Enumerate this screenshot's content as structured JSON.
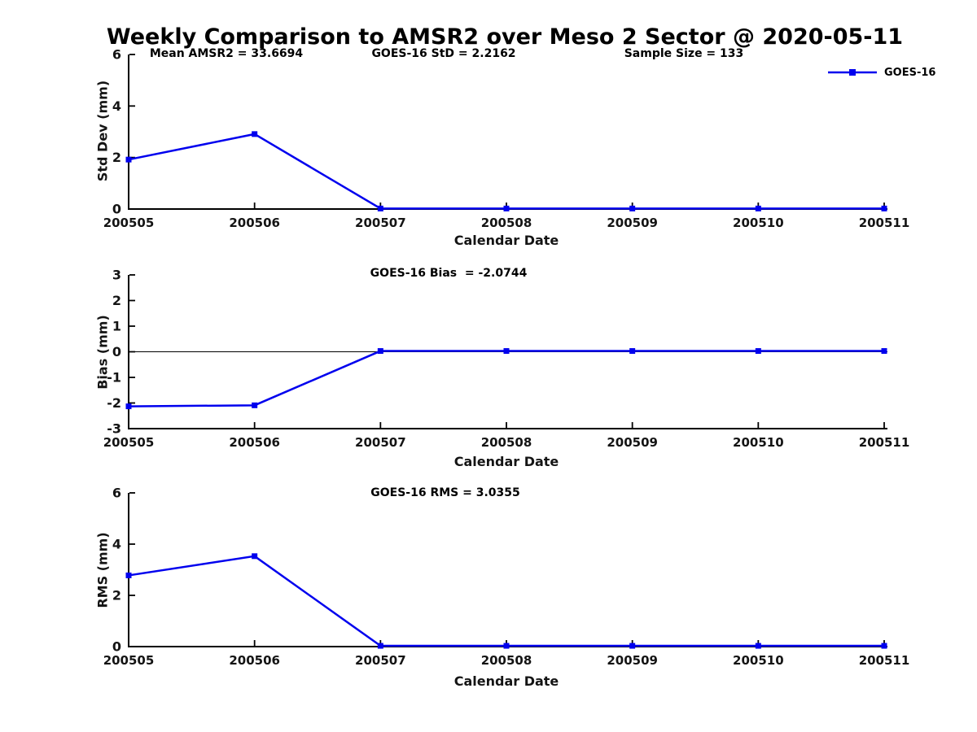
{
  "title": "Weekly Comparison to AMSR2 over Meso 2 Sector @ 2020-05-11",
  "legend": {
    "label": "GOES-16",
    "color": "#0000ee"
  },
  "chart_data": [
    {
      "type": "line",
      "name": "std-dev",
      "stats": [
        "Mean AMSR2 = 33.6694",
        "GOES-16 StD = 2.2162",
        "Sample Size = 133"
      ],
      "ylabel": "Std Dev (mm)",
      "xlabel": "Calendar Date",
      "ylim": [
        0,
        6
      ],
      "yticks": [
        0,
        2,
        4,
        6
      ],
      "categories": [
        "200505",
        "200506",
        "200507",
        "200508",
        "200509",
        "200510",
        "200511"
      ],
      "zero_line": false,
      "legend_position": "upper right outside",
      "grid": false,
      "series": [
        {
          "name": "GOES-16",
          "color": "#0000ee",
          "marker": "square",
          "values": [
            1.92,
            2.91,
            0.02,
            0.02,
            0.02,
            0.02,
            0.02
          ]
        }
      ]
    },
    {
      "type": "line",
      "name": "bias",
      "stats": [
        "GOES-16 Bias  = -2.0744"
      ],
      "ylabel": "Bias (mm)",
      "xlabel": "Calendar Date",
      "ylim": [
        -3,
        3
      ],
      "yticks": [
        -3,
        -2,
        -1,
        0,
        1,
        2,
        3
      ],
      "categories": [
        "200505",
        "200506",
        "200507",
        "200508",
        "200509",
        "200510",
        "200511"
      ],
      "zero_line": true,
      "grid": false,
      "series": [
        {
          "name": "GOES-16",
          "color": "#0000ee",
          "marker": "square",
          "values": [
            -2.13,
            -2.09,
            0.03,
            0.03,
            0.03,
            0.03,
            0.03
          ]
        }
      ]
    },
    {
      "type": "line",
      "name": "rms",
      "stats": [
        "GOES-16 RMS = 3.0355"
      ],
      "ylabel": "RMS (mm)",
      "xlabel": "Calendar Date",
      "ylim": [
        0,
        6
      ],
      "yticks": [
        0,
        2,
        4,
        6
      ],
      "categories": [
        "200505",
        "200506",
        "200507",
        "200508",
        "200509",
        "200510",
        "200511"
      ],
      "zero_line": false,
      "grid": false,
      "series": [
        {
          "name": "GOES-16",
          "color": "#0000ee",
          "marker": "square",
          "values": [
            2.78,
            3.53,
            0.03,
            0.03,
            0.03,
            0.03,
            0.03
          ]
        }
      ]
    }
  ]
}
